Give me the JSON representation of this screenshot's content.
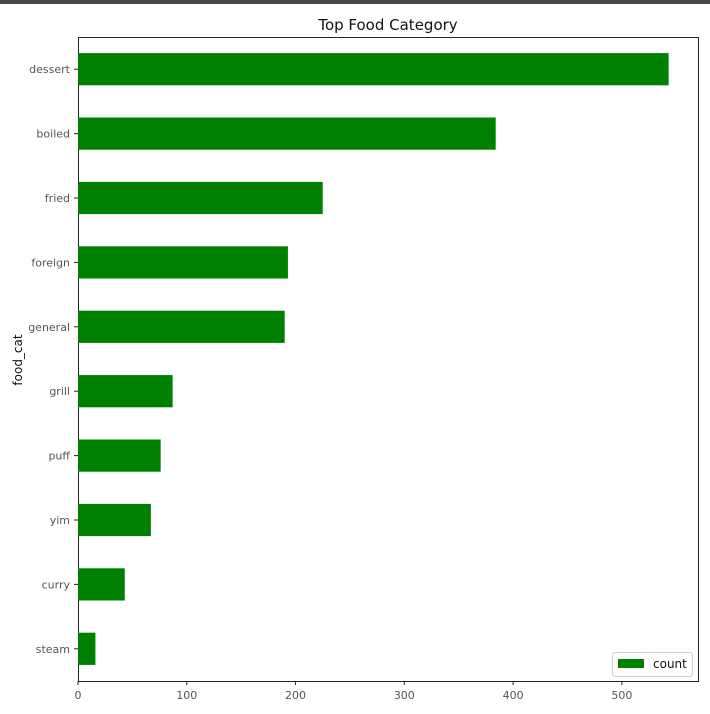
{
  "chart_data": {
    "type": "bar",
    "orientation": "horizontal",
    "title": "Top Food Category",
    "ylabel": "food_cat",
    "xlabel": "",
    "categories": [
      "dessert",
      "boiled",
      "fried",
      "foreign",
      "general",
      "grill",
      "puff",
      "yim",
      "curry",
      "steam"
    ],
    "series": [
      {
        "name": "count",
        "values": [
          543,
          384,
          225,
          193,
          190,
          87,
          76,
          67,
          43,
          16
        ]
      }
    ],
    "xlim": [
      0,
      570
    ],
    "xticks": [
      0,
      100,
      200,
      300,
      400,
      500
    ],
    "grid": false,
    "legend_position": "bottom-right",
    "bar_color": "#008000"
  }
}
